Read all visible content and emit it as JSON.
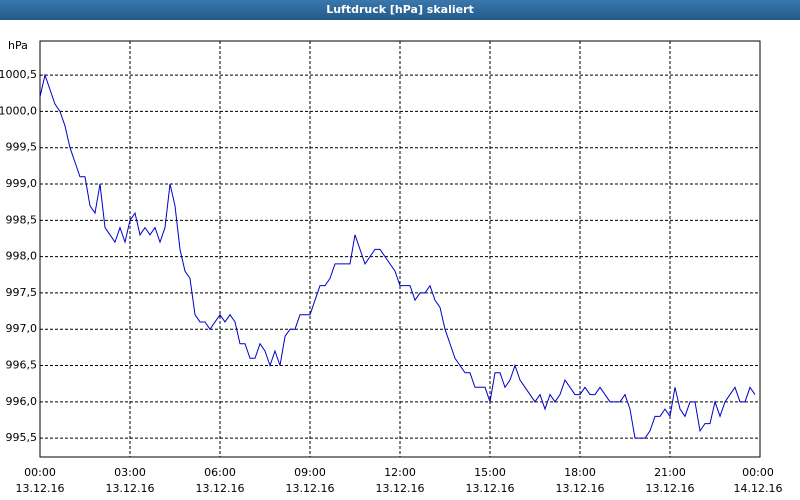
{
  "chart_data": {
    "type": "line",
    "title": "Luftdruck [hPa] skaliert",
    "y_label": "hPa",
    "xlim": [
      0,
      1440
    ],
    "xticks": [
      {
        "value": 0,
        "label": "00:00\n13.12.16"
      },
      {
        "value": 180,
        "label": "03:00\n13.12.16"
      },
      {
        "value": 360,
        "label": "06:00\n13.12.16"
      },
      {
        "value": 540,
        "label": "09:00\n13.12.16"
      },
      {
        "value": 720,
        "label": "12:00\n13.12.16"
      },
      {
        "value": 900,
        "label": "15:00\n13.12.16"
      },
      {
        "value": 1080,
        "label": "18:00\n13.12.16"
      },
      {
        "value": 1260,
        "label": "21:00\n13.12.16"
      },
      {
        "value": 1440,
        "label": "00:00\n14.12.16"
      }
    ],
    "ylim": [
      995.24,
      1000.97
    ],
    "yticks": [
      {
        "value": 995.5,
        "label": "995,5"
      },
      {
        "value": 996,
        "label": "996,0"
      },
      {
        "value": 996.5,
        "label": "996,5"
      },
      {
        "value": 997,
        "label": "997,0"
      },
      {
        "value": 997.5,
        "label": "997,5"
      },
      {
        "value": 998,
        "label": "998,0"
      },
      {
        "value": 998.5,
        "label": "998,5"
      },
      {
        "value": 999,
        "label": "999,0"
      },
      {
        "value": 999.5,
        "label": "999,5"
      },
      {
        "value": 1000,
        "label": "1000,0"
      },
      {
        "value": 1000.5,
        "label": "1000,5"
      }
    ],
    "grid": true,
    "series": [
      {
        "color": "#0000c8",
        "x": [
          0,
          10,
          20,
          30,
          40,
          50,
          60,
          70,
          80,
          90,
          100,
          110,
          120,
          130,
          140,
          150,
          160,
          170,
          180,
          190,
          200,
          210,
          220,
          230,
          240,
          250,
          260,
          270,
          280,
          290,
          300,
          310,
          320,
          330,
          340,
          350,
          360,
          370,
          380,
          390,
          400,
          410,
          420,
          430,
          440,
          450,
          460,
          470,
          480,
          490,
          500,
          510,
          520,
          530,
          540,
          550,
          560,
          570,
          580,
          590,
          600,
          610,
          620,
          630,
          640,
          650,
          660,
          670,
          680,
          690,
          700,
          710,
          720,
          730,
          740,
          750,
          760,
          770,
          780,
          790,
          800,
          810,
          820,
          830,
          840,
          850,
          860,
          870,
          880,
          890,
          900,
          910,
          920,
          930,
          940,
          950,
          960,
          970,
          980,
          990,
          1000,
          1010,
          1020,
          1030,
          1040,
          1050,
          1060,
          1070,
          1080,
          1090,
          1100,
          1110,
          1120,
          1130,
          1140,
          1150,
          1160,
          1170,
          1180,
          1190,
          1200,
          1210,
          1220,
          1230,
          1240,
          1250,
          1260,
          1270,
          1280,
          1290,
          1300,
          1310,
          1320,
          1330,
          1340,
          1350,
          1360,
          1370,
          1380,
          1390,
          1400,
          1410,
          1420,
          1430
        ],
        "values": [
          1000.2,
          1000.5,
          1000.3,
          1000.1,
          1000.0,
          999.8,
          999.5,
          999.3,
          999.1,
          999.1,
          998.7,
          998.6,
          999.0,
          998.4,
          998.3,
          998.2,
          998.4,
          998.2,
          998.5,
          998.6,
          998.3,
          998.4,
          998.3,
          998.4,
          998.2,
          998.4,
          999.0,
          998.7,
          998.1,
          997.8,
          997.7,
          997.2,
          997.1,
          997.1,
          997.0,
          997.1,
          997.2,
          997.1,
          997.2,
          997.1,
          996.8,
          996.8,
          996.6,
          996.6,
          996.8,
          996.7,
          996.5,
          996.7,
          996.5,
          996.9,
          997.0,
          997.0,
          997.2,
          997.2,
          997.2,
          997.4,
          997.6,
          997.6,
          997.7,
          997.9,
          997.9,
          997.9,
          997.9,
          998.3,
          998.1,
          997.9,
          998.0,
          998.1,
          998.1,
          998.0,
          997.9,
          997.8,
          997.6,
          997.6,
          997.6,
          997.4,
          997.5,
          997.5,
          997.6,
          997.4,
          997.3,
          997.0,
          996.8,
          996.6,
          996.5,
          996.4,
          996.4,
          996.2,
          996.2,
          996.2,
          996.0,
          996.4,
          996.4,
          996.2,
          996.3,
          996.5,
          996.3,
          996.2,
          996.1,
          996.0,
          996.1,
          995.9,
          996.1,
          996.0,
          996.1,
          996.3,
          996.2,
          996.1,
          996.1,
          996.2,
          996.1,
          996.1,
          996.2,
          996.1,
          996.0,
          996.0,
          996.0,
          996.1,
          995.9,
          995.5,
          995.5,
          995.5,
          995.6,
          995.8,
          995.8,
          995.9,
          995.8,
          996.2,
          995.9,
          995.8,
          996.0,
          996.0,
          995.6,
          995.7,
          995.7,
          996.0,
          995.8,
          996.0,
          996.1,
          996.2,
          996.0,
          996.0,
          996.2,
          996.1
        ]
      }
    ]
  }
}
